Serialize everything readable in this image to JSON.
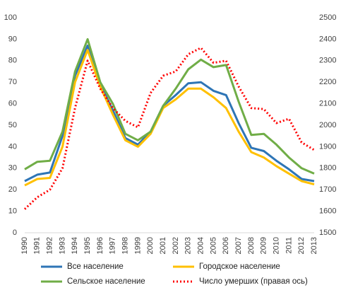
{
  "chart_data": {
    "type": "line",
    "categories": [
      "1990",
      "1991",
      "1992",
      "1993",
      "1994",
      "1995",
      "1996",
      "1997",
      "1998",
      "1999",
      "2000",
      "2001",
      "2002",
      "2003",
      "2004",
      "2005",
      "2006",
      "2007",
      "2008",
      "2009",
      "2010",
      "2011",
      "2012",
      "2013"
    ],
    "series": [
      {
        "name": "Все население",
        "color": "#2e75b6",
        "values": [
          24,
          27,
          28,
          45,
          73,
          87,
          69,
          57,
          44,
          41,
          47,
          59,
          64,
          69.5,
          70,
          66,
          64,
          51,
          39.5,
          38,
          33.5,
          29.5,
          25,
          24
        ]
      },
      {
        "name": "Городское население",
        "color": "#ffc000",
        "values": [
          22,
          25,
          25.5,
          40,
          70,
          85,
          68,
          55,
          43,
          40,
          46,
          58,
          62,
          67,
          67,
          63,
          58,
          47,
          37.5,
          35,
          31,
          27.5,
          24,
          22.5
        ]
      },
      {
        "name": "Сельское население",
        "color": "#70ad47",
        "values": [
          29.5,
          33,
          33.5,
          47,
          75,
          90,
          70,
          60,
          46,
          43,
          47,
          59,
          67,
          76,
          80.5,
          77,
          78,
          61,
          45.5,
          46,
          41,
          35,
          30,
          27.5
        ]
      },
      {
        "name": "Число умерших (правая ось)",
        "color": "#ff0000",
        "axis": "y2",
        "dashed": true,
        "values": [
          1610,
          1665,
          1700,
          1800,
          2080,
          2300,
          2170,
          2080,
          2020,
          1990,
          2150,
          2230,
          2250,
          2330,
          2360,
          2290,
          2300,
          2180,
          2080,
          2075,
          2010,
          2030,
          1920,
          1885
        ]
      }
    ],
    "ylim": [
      0,
      100
    ],
    "yticks": [
      0,
      10,
      20,
      30,
      40,
      50,
      60,
      70,
      80,
      90,
      100
    ],
    "y2lim": [
      1500,
      2500
    ],
    "y2ticks": [
      1500,
      1600,
      1700,
      1800,
      1900,
      2000,
      2100,
      2200,
      2300,
      2400,
      2500
    ],
    "grid": false
  }
}
